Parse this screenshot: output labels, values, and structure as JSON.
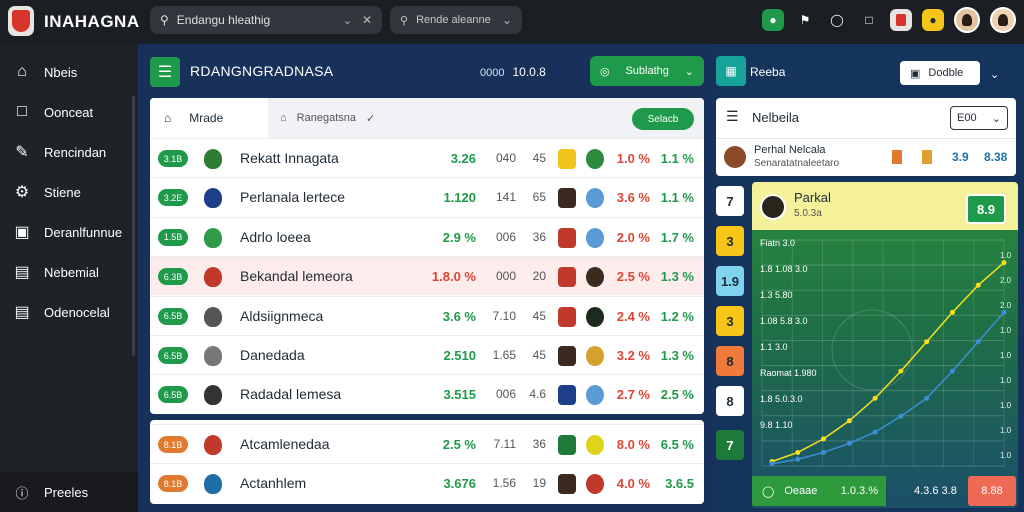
{
  "app": {
    "title": "INAHAGNA"
  },
  "topbar": {
    "search_value": "Endangu hleathig",
    "filter_value": "Rende aleanne",
    "icons": [
      "chat-icon",
      "flag-icon",
      "shield-icon",
      "bookmark-icon",
      "trophy-icon",
      "coin-icon"
    ]
  },
  "sidebar": {
    "items": [
      {
        "label": "Nbeis",
        "icon": "home-icon"
      },
      {
        "label": "Oonceat",
        "icon": "document-icon"
      },
      {
        "label": "Rencindan",
        "icon": "edit-icon"
      },
      {
        "label": "Stiene",
        "icon": "gear-icon"
      },
      {
        "label": "Deranlfunnue",
        "icon": "calendar-icon"
      },
      {
        "label": "Nebemial",
        "icon": "library-icon"
      },
      {
        "label": "Odenocelal",
        "icon": "list-icon"
      }
    ],
    "footer": "Preeles"
  },
  "main": {
    "title": "RDANGNGRADNASA",
    "meta_label": "0000",
    "meta_value": "10.0.8",
    "dropdown": "Sublathg",
    "tabs": {
      "active": "Mrade",
      "second": "Ranegatsna",
      "button": "Selacb"
    },
    "rows": [
      {
        "rank": "3.1B",
        "rank_color": "#1f9a4a",
        "crest_color": "#2e7d32",
        "name": "Rekatt Innagata",
        "a": "3.26",
        "b": "040",
        "c": "45",
        "p1_color": "#f0c419",
        "p2_color": "#2e8b3e",
        "d": "1.0 %",
        "e": "1.1 %"
      },
      {
        "rank": "3.2E",
        "rank_color": "#1f9a4a",
        "crest_color": "#1d3f8a",
        "name": "Perlanala lertece",
        "a": "1.120",
        "b": "141",
        "c": "65",
        "p1_color": "#3a2a1f",
        "p2_color": "#5b9bd5",
        "d": "3.6 %",
        "e": "1.1 %"
      },
      {
        "rank": "1.5B",
        "rank_color": "#1f9a4a",
        "crest_color": "#2e9a4a",
        "name": "Adrlo loeea",
        "a": "2.9 %",
        "b": "006",
        "c": "36",
        "p1_color": "#c0392b",
        "p2_color": "#5b9bd5",
        "d": "2.0 %",
        "e": "1.7 %"
      },
      {
        "rank": "6.3B",
        "rank_color": "#1f9a4a",
        "crest_color": "#c0392b",
        "name": "Bekandal lemeora",
        "a": "1.8.0 %",
        "b": "000",
        "c": "20",
        "p1_color": "#c0392b",
        "p2_color": "#3a2a1f",
        "d": "2.5 %",
        "e": "1.3 %",
        "highlight": true
      },
      {
        "rank": "6.5B",
        "rank_color": "#1f9a4a",
        "crest_color": "#555555",
        "name": "Aldsiignmeca",
        "a": "3.6 %",
        "b": "7.10",
        "c": "45",
        "p1_color": "#c0392b",
        "p2_color": "#1e2a1e",
        "d": "2.4 %",
        "e": "1.2 %"
      },
      {
        "rank": "6.5B",
        "rank_color": "#1f9a4a",
        "crest_color": "#777777",
        "name": "Danedada",
        "a": "2.510",
        "b": "1.65",
        "c": "45",
        "p1_color": "#3a2a1f",
        "p2_color": "#d4a02e",
        "d": "3.2 %",
        "e": "1.3 %"
      },
      {
        "rank": "6.5B",
        "rank_color": "#1f9a4a",
        "crest_color": "#333333",
        "name": "Radadal lemesa",
        "a": "3.515",
        "b": "006",
        "c": "4.6",
        "p1_color": "#1d3f8a",
        "p2_color": "#5b9bd5",
        "d": "2.7 %",
        "e": "2.5 %"
      }
    ],
    "rows2": [
      {
        "rank": "8.1B",
        "rank_color": "#e07a2e",
        "crest_color": "#c0392b",
        "name": "Atcamlenedaa",
        "a": "2.5 %",
        "b": "7.11",
        "c": "36",
        "p1_color": "#1f7a3a",
        "p2_color": "#e0d419",
        "d": "8.0 %",
        "e": "6.5 %"
      },
      {
        "rank": "8.1B",
        "rank_color": "#e07a2e",
        "crest_color": "#1d6fa5",
        "name": "Actanhlem",
        "a": "3.676",
        "b": "1.56",
        "c": "19",
        "p1_color": "#3a2a1f",
        "p2_color": "#c0392b",
        "d": "4.0 %",
        "e": "3.6.5"
      }
    ]
  },
  "right": {
    "title": "Reeba",
    "button": "Dodble",
    "panel_title": "Nelbeila",
    "select": "E00",
    "player_name": "Perhal Nelcala",
    "player_sub": "Senaratatnaleetaro",
    "val1": "3.9",
    "val2": "8.38",
    "chips": [
      {
        "value": "7",
        "bg": "#ffffff",
        "color": "#1e2a36"
      },
      {
        "value": "3",
        "bg": "#f5c518",
        "color": "#1e2a36"
      },
      {
        "value": "1.9",
        "bg": "#7fd3ee",
        "color": "#1e2a36"
      },
      {
        "value": "3",
        "bg": "#f5c518",
        "color": "#1e2a36"
      },
      {
        "value": "8",
        "bg": "#f07a3a",
        "color": "#1e2a36"
      },
      {
        "value": "8",
        "bg": "#ffffff",
        "color": "#1e2a36"
      },
      {
        "value": "7",
        "bg": "#1f7a3a",
        "color": "#ffffff"
      }
    ],
    "chart_header": {
      "name": "Parkal",
      "sub": "5.0.3a",
      "badge": "8.9"
    },
    "chart_left_labels": [
      "Fiatn 3.0",
      "1.8 1.08 3.0",
      "1.3 5.80",
      "1.08 5.8 3.0",
      "1.1 3.0",
      "Raomat 1.980",
      "1.8 5.0.3.0",
      "9.8 1.10"
    ],
    "chart_right_labels": [
      "1.0",
      "2.0",
      "2.0",
      "1.0",
      "1.0",
      "1.0",
      "1.0",
      "1.0",
      "1.0"
    ],
    "footer": {
      "left": "Oeaae",
      "left_value": "1.0.3.%",
      "mid_value": "4.3.6 3.8",
      "right": "8.88"
    }
  },
  "chart_data": {
    "type": "line",
    "series": [
      {
        "color": "#f5e020",
        "values": [
          0.02,
          0.06,
          0.12,
          0.2,
          0.3,
          0.42,
          0.55,
          0.68,
          0.8,
          0.9
        ]
      },
      {
        "color": "#3a8fd6",
        "values": [
          0.01,
          0.03,
          0.06,
          0.1,
          0.15,
          0.22,
          0.3,
          0.42,
          0.55,
          0.68
        ]
      }
    ],
    "grid": true
  }
}
